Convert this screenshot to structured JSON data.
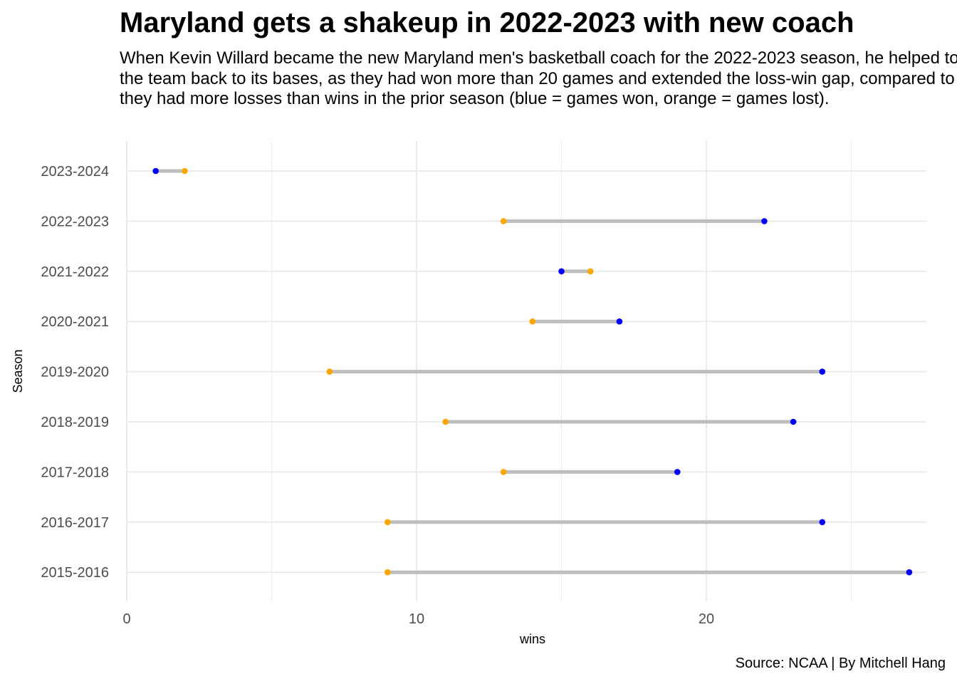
{
  "title": "Maryland gets a shakeup in 2022-2023 with new coach",
  "subtitle": "When Kevin Willard became the new Maryland men's basketball coach for the 2022-2023 season, he helped to bring the team back to its bases, as they had won more than 20 games and extended the loss-win gap, compared to when they had more losses than wins in the prior season (blue = games won, orange = games lost).",
  "caption": "Source: NCAA | By Mitchell Hang",
  "colors": {
    "won": "#0000ff",
    "lost": "#ffa500",
    "segment": "#bebebe",
    "grid": "#ebebeb",
    "tick_text": "#4d4d4d"
  },
  "chart_data": {
    "type": "dumbbell",
    "title": "Maryland gets a shakeup in 2022-2023 with new coach",
    "xlabel": "wins",
    "ylabel": "Season",
    "xlim": [
      0,
      27.5
    ],
    "x_ticks": [
      0,
      10,
      20
    ],
    "grid": true,
    "legend": "none",
    "categories": [
      "2015-2016",
      "2016-2017",
      "2017-2018",
      "2018-2019",
      "2019-2020",
      "2020-2021",
      "2021-2022",
      "2022-2023",
      "2023-2024"
    ],
    "series": [
      {
        "name": "wins",
        "color": "#0000ff",
        "values": [
          27,
          24,
          19,
          23,
          24,
          17,
          15,
          22,
          1
        ]
      },
      {
        "name": "losses",
        "color": "#ffa500",
        "values": [
          9,
          9,
          13,
          11,
          7,
          14,
          16,
          13,
          2
        ]
      }
    ]
  }
}
